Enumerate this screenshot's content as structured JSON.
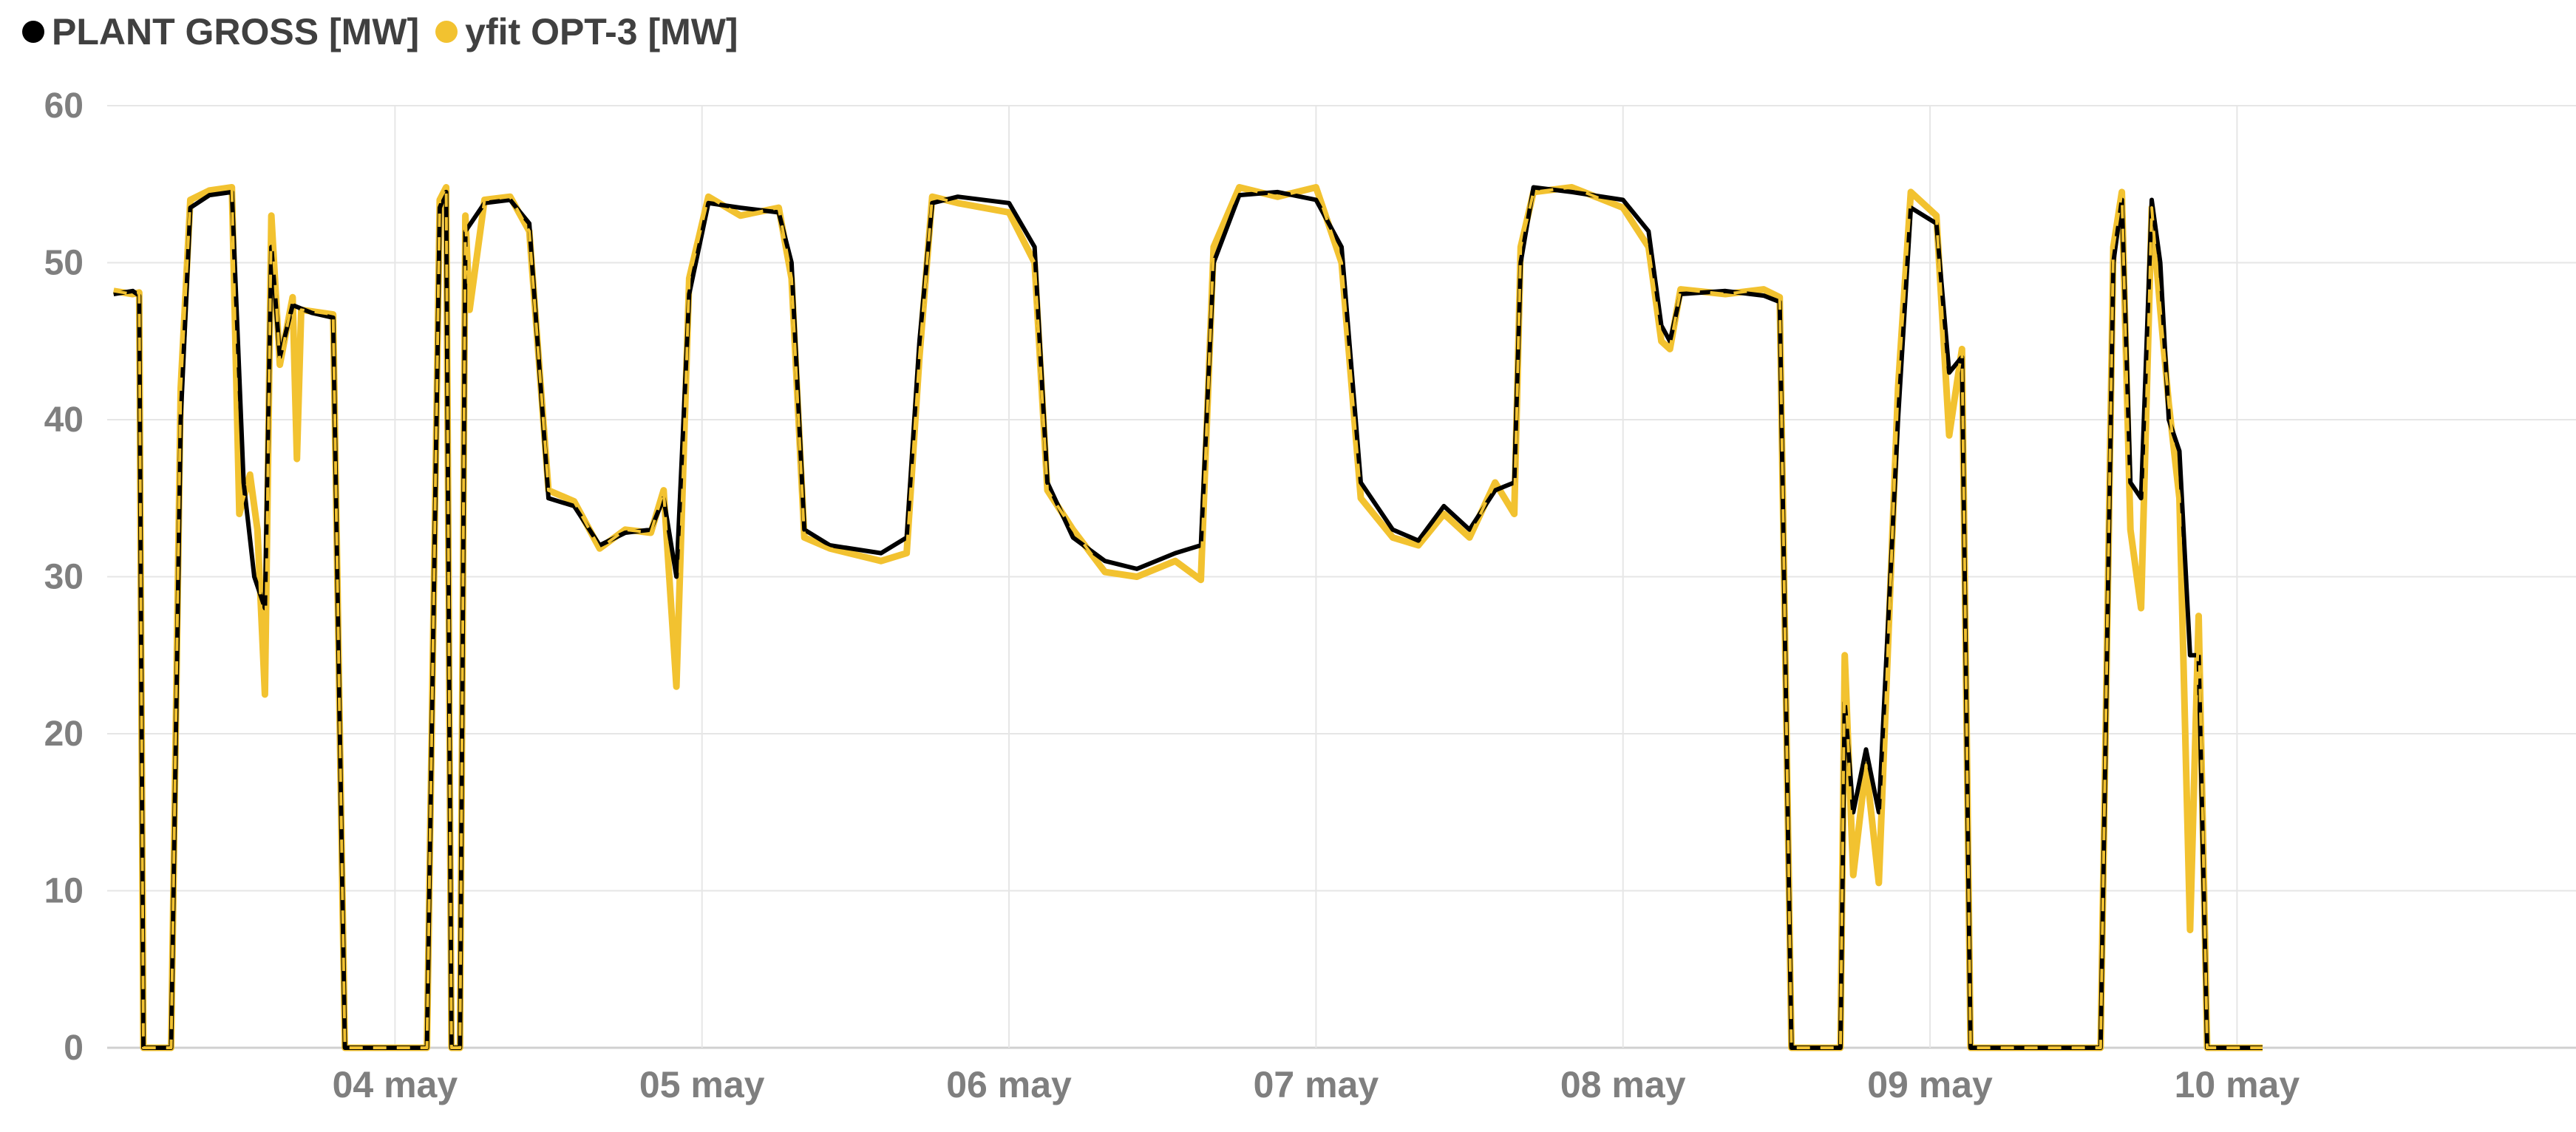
{
  "chart_data": {
    "type": "line",
    "title": "",
    "xlabel": "",
    "ylabel": "",
    "ylim": [
      0,
      60
    ],
    "yticks": [
      0,
      10,
      20,
      30,
      40,
      50,
      60
    ],
    "xlim": [
      "2023-05-03T01:30",
      "2023-05-11T02:30"
    ],
    "x_ticks": [
      {
        "x": "2023-05-04T00:00",
        "label": "04 may"
      },
      {
        "x": "2023-05-05T00:00",
        "label": "05 may"
      },
      {
        "x": "2023-05-06T00:00",
        "label": "06 may"
      },
      {
        "x": "2023-05-07T00:00",
        "label": "07 may"
      },
      {
        "x": "2023-05-08T00:00",
        "label": "08 may"
      },
      {
        "x": "2023-05-09T00:00",
        "label": "09 may"
      },
      {
        "x": "2023-05-10T00:00",
        "label": "10 may"
      }
    ],
    "grid": true,
    "legend_position": "top-left",
    "series": [
      {
        "name": "PLANT GROSS [MW]",
        "color": "#000000",
        "style": "solid",
        "points": [
          [
            "2023-05-03T02:00",
            48.0
          ],
          [
            "2023-05-03T03:30",
            48.2
          ],
          [
            "2023-05-03T04:00",
            47.9
          ],
          [
            "2023-05-03T04:20",
            0
          ],
          [
            "2023-05-03T06:30",
            0
          ],
          [
            "2023-05-03T07:15",
            40.0
          ],
          [
            "2023-05-03T08:00",
            53.5
          ],
          [
            "2023-05-03T09:30",
            54.3
          ],
          [
            "2023-05-03T11:15",
            54.5
          ],
          [
            "2023-05-03T12:10",
            36.0
          ],
          [
            "2023-05-03T13:00",
            30.0
          ],
          [
            "2023-05-03T13:50",
            28.0
          ],
          [
            "2023-05-03T14:20",
            51.0
          ],
          [
            "2023-05-03T15:00",
            44.0
          ],
          [
            "2023-05-03T16:00",
            47.3
          ],
          [
            "2023-05-03T17:30",
            46.8
          ],
          [
            "2023-05-03T19:10",
            46.5
          ],
          [
            "2023-05-03T20:05",
            0
          ],
          [
            "2023-05-04T02:30",
            0
          ],
          [
            "2023-05-04T03:30",
            53.5
          ],
          [
            "2023-05-04T04:00",
            54.5
          ],
          [
            "2023-05-04T04:25",
            0
          ],
          [
            "2023-05-04T05:05",
            0
          ],
          [
            "2023-05-04T05:30",
            52.0
          ],
          [
            "2023-05-04T07:00",
            53.8
          ],
          [
            "2023-05-04T09:00",
            54.0
          ],
          [
            "2023-05-04T10:30",
            52.5
          ],
          [
            "2023-05-04T12:00",
            35.0
          ],
          [
            "2023-05-04T14:00",
            34.5
          ],
          [
            "2023-05-04T16:00",
            32.0
          ],
          [
            "2023-05-04T18:00",
            32.8
          ],
          [
            "2023-05-04T20:00",
            33.0
          ],
          [
            "2023-05-04T21:00",
            35.0
          ],
          [
            "2023-05-04T22:00",
            30.0
          ],
          [
            "2023-05-04T23:00",
            48.0
          ],
          [
            "2023-05-05T00:30",
            53.8
          ],
          [
            "2023-05-05T03:00",
            53.5
          ],
          [
            "2023-05-05T06:00",
            53.2
          ],
          [
            "2023-05-05T07:00",
            50.0
          ],
          [
            "2023-05-05T08:00",
            33.0
          ],
          [
            "2023-05-05T10:00",
            32.0
          ],
          [
            "2023-05-05T14:00",
            31.5
          ],
          [
            "2023-05-05T16:00",
            32.5
          ],
          [
            "2023-05-05T17:00",
            45.0
          ],
          [
            "2023-05-05T18:00",
            53.8
          ],
          [
            "2023-05-05T20:00",
            54.2
          ],
          [
            "2023-05-06T00:00",
            53.8
          ],
          [
            "2023-05-06T02:00",
            51.0
          ],
          [
            "2023-05-06T03:00",
            36.0
          ],
          [
            "2023-05-06T05:00",
            32.5
          ],
          [
            "2023-05-06T07:30",
            31.0
          ],
          [
            "2023-05-06T10:00",
            30.5
          ],
          [
            "2023-05-06T13:00",
            31.5
          ],
          [
            "2023-05-06T15:00",
            32.0
          ],
          [
            "2023-05-06T16:00",
            50.0
          ],
          [
            "2023-05-06T18:00",
            54.3
          ],
          [
            "2023-05-06T21:00",
            54.5
          ],
          [
            "2023-05-07T00:00",
            54.0
          ],
          [
            "2023-05-07T02:00",
            51.0
          ],
          [
            "2023-05-07T03:30",
            36.0
          ],
          [
            "2023-05-07T06:00",
            33.0
          ],
          [
            "2023-05-07T08:00",
            32.3
          ],
          [
            "2023-05-07T10:00",
            34.5
          ],
          [
            "2023-05-07T12:00",
            33.0
          ],
          [
            "2023-05-07T14:00",
            35.5
          ],
          [
            "2023-05-07T15:30",
            36.0
          ],
          [
            "2023-05-07T16:00",
            50.0
          ],
          [
            "2023-05-07T17:00",
            54.8
          ],
          [
            "2023-05-07T20:00",
            54.5
          ],
          [
            "2023-05-08T00:00",
            54.0
          ],
          [
            "2023-05-08T02:00",
            52.0
          ],
          [
            "2023-05-08T03:00",
            46.0
          ],
          [
            "2023-05-08T03:40",
            45.0
          ],
          [
            "2023-05-08T04:30",
            48.0
          ],
          [
            "2023-05-08T08:00",
            48.2
          ],
          [
            "2023-05-08T11:00",
            47.9
          ],
          [
            "2023-05-08T12:15",
            47.5
          ],
          [
            "2023-05-08T13:10",
            0
          ],
          [
            "2023-05-08T17:00",
            0
          ],
          [
            "2023-05-08T17:20",
            22.0
          ],
          [
            "2023-05-08T18:00",
            15.0
          ],
          [
            "2023-05-08T19:00",
            19.0
          ],
          [
            "2023-05-08T20:00",
            15.0
          ],
          [
            "2023-05-08T21:30",
            40.0
          ],
          [
            "2023-05-08T22:30",
            53.5
          ],
          [
            "2023-05-09T00:30",
            52.5
          ],
          [
            "2023-05-09T01:30",
            43.0
          ],
          [
            "2023-05-09T02:30",
            44.0
          ],
          [
            "2023-05-09T03:10",
            0
          ],
          [
            "2023-05-09T13:20",
            0
          ],
          [
            "2023-05-09T14:20",
            50.0
          ],
          [
            "2023-05-09T15:00",
            54.0
          ],
          [
            "2023-05-09T15:40",
            36.0
          ],
          [
            "2023-05-09T16:30",
            35.0
          ],
          [
            "2023-05-09T17:20",
            54.0
          ],
          [
            "2023-05-09T18:00",
            50.0
          ],
          [
            "2023-05-09T18:40",
            40.0
          ],
          [
            "2023-05-09T19:30",
            38.0
          ],
          [
            "2023-05-09T20:20",
            25.0
          ],
          [
            "2023-05-09T21:00",
            25.0
          ],
          [
            "2023-05-09T21:40",
            0
          ],
          [
            "2023-05-10T02:00",
            0
          ]
        ]
      },
      {
        "name": "yfit OPT-3 [MW]",
        "color": "#f2c230",
        "style": "dashed",
        "points": [
          [
            "2023-05-03T02:00",
            48.2
          ],
          [
            "2023-05-03T03:30",
            48.0
          ],
          [
            "2023-05-03T04:00",
            48.1
          ],
          [
            "2023-05-03T04:20",
            0
          ],
          [
            "2023-05-03T06:30",
            0
          ],
          [
            "2023-05-03T07:15",
            42.0
          ],
          [
            "2023-05-03T08:00",
            54.0
          ],
          [
            "2023-05-03T09:30",
            54.6
          ],
          [
            "2023-05-03T11:15",
            54.8
          ],
          [
            "2023-05-03T11:50",
            34.0
          ],
          [
            "2023-05-03T12:40",
            36.5
          ],
          [
            "2023-05-03T13:15",
            33.0
          ],
          [
            "2023-05-03T13:50",
            22.5
          ],
          [
            "2023-05-03T14:20",
            53.0
          ],
          [
            "2023-05-03T15:00",
            43.5
          ],
          [
            "2023-05-03T16:00",
            47.8
          ],
          [
            "2023-05-03T16:20",
            37.5
          ],
          [
            "2023-05-03T16:40",
            47.0
          ],
          [
            "2023-05-03T19:10",
            46.7
          ],
          [
            "2023-05-03T20:05",
            0
          ],
          [
            "2023-05-04T02:30",
            0
          ],
          [
            "2023-05-04T03:30",
            54.0
          ],
          [
            "2023-05-04T04:00",
            54.8
          ],
          [
            "2023-05-04T04:25",
            0
          ],
          [
            "2023-05-04T05:05",
            0
          ],
          [
            "2023-05-04T05:30",
            53.0
          ],
          [
            "2023-05-04T05:50",
            47.0
          ],
          [
            "2023-05-04T07:00",
            54.0
          ],
          [
            "2023-05-04T09:00",
            54.2
          ],
          [
            "2023-05-04T10:30",
            52.0
          ],
          [
            "2023-05-04T12:00",
            35.5
          ],
          [
            "2023-05-04T14:00",
            34.8
          ],
          [
            "2023-05-04T16:00",
            31.8
          ],
          [
            "2023-05-04T18:00",
            33.0
          ],
          [
            "2023-05-04T20:00",
            32.8
          ],
          [
            "2023-05-04T21:00",
            35.5
          ],
          [
            "2023-05-04T22:00",
            23.0
          ],
          [
            "2023-05-04T23:00",
            49.0
          ],
          [
            "2023-05-05T00:30",
            54.2
          ],
          [
            "2023-05-05T03:00",
            53.0
          ],
          [
            "2023-05-05T06:00",
            53.5
          ],
          [
            "2023-05-05T07:00",
            49.0
          ],
          [
            "2023-05-05T08:00",
            32.5
          ],
          [
            "2023-05-05T10:00",
            31.8
          ],
          [
            "2023-05-05T14:00",
            31.0
          ],
          [
            "2023-05-05T16:00",
            31.5
          ],
          [
            "2023-05-05T17:00",
            44.0
          ],
          [
            "2023-05-05T18:00",
            54.2
          ],
          [
            "2023-05-05T20:00",
            53.8
          ],
          [
            "2023-05-06T00:00",
            53.2
          ],
          [
            "2023-05-06T02:00",
            50.0
          ],
          [
            "2023-05-06T03:00",
            35.5
          ],
          [
            "2023-05-06T05:00",
            33.0
          ],
          [
            "2023-05-06T07:30",
            30.3
          ],
          [
            "2023-05-06T10:00",
            30.0
          ],
          [
            "2023-05-06T13:00",
            31.0
          ],
          [
            "2023-05-06T15:00",
            29.8
          ],
          [
            "2023-05-06T16:00",
            51.0
          ],
          [
            "2023-05-06T18:00",
            54.8
          ],
          [
            "2023-05-06T21:00",
            54.2
          ],
          [
            "2023-05-07T00:00",
            54.8
          ],
          [
            "2023-05-07T02:00",
            50.0
          ],
          [
            "2023-05-07T03:30",
            35.0
          ],
          [
            "2023-05-07T06:00",
            32.5
          ],
          [
            "2023-05-07T08:00",
            32.0
          ],
          [
            "2023-05-07T10:00",
            34.0
          ],
          [
            "2023-05-07T12:00",
            32.5
          ],
          [
            "2023-05-07T14:00",
            36.0
          ],
          [
            "2023-05-07T15:30",
            34.0
          ],
          [
            "2023-05-07T16:00",
            51.0
          ],
          [
            "2023-05-07T17:00",
            54.5
          ],
          [
            "2023-05-07T20:00",
            54.8
          ],
          [
            "2023-05-08T00:00",
            53.5
          ],
          [
            "2023-05-08T02:00",
            51.0
          ],
          [
            "2023-05-08T03:00",
            45.0
          ],
          [
            "2023-05-08T03:40",
            44.5
          ],
          [
            "2023-05-08T04:30",
            48.3
          ],
          [
            "2023-05-08T08:00",
            48.0
          ],
          [
            "2023-05-08T11:00",
            48.3
          ],
          [
            "2023-05-08T12:15",
            47.8
          ],
          [
            "2023-05-08T13:10",
            0
          ],
          [
            "2023-05-08T17:00",
            0
          ],
          [
            "2023-05-08T17:20",
            25.0
          ],
          [
            "2023-05-08T18:00",
            11.0
          ],
          [
            "2023-05-08T19:00",
            18.0
          ],
          [
            "2023-05-08T20:00",
            10.5
          ],
          [
            "2023-05-08T21:30",
            42.0
          ],
          [
            "2023-05-08T22:30",
            54.5
          ],
          [
            "2023-05-09T00:30",
            53.0
          ],
          [
            "2023-05-09T01:30",
            39.0
          ],
          [
            "2023-05-09T02:30",
            44.5
          ],
          [
            "2023-05-09T03:10",
            0
          ],
          [
            "2023-05-09T13:20",
            0
          ],
          [
            "2023-05-09T14:20",
            51.0
          ],
          [
            "2023-05-09T15:00",
            54.5
          ],
          [
            "2023-05-09T15:40",
            33.0
          ],
          [
            "2023-05-09T16:30",
            28.0
          ],
          [
            "2023-05-09T17:20",
            53.5
          ],
          [
            "2023-05-09T18:00",
            47.0
          ],
          [
            "2023-05-09T18:40",
            41.0
          ],
          [
            "2023-05-09T19:30",
            35.0
          ],
          [
            "2023-05-09T20:20",
            7.5
          ],
          [
            "2023-05-09T21:00",
            27.5
          ],
          [
            "2023-05-09T21:40",
            0
          ],
          [
            "2023-05-10T02:00",
            0
          ]
        ]
      }
    ]
  }
}
